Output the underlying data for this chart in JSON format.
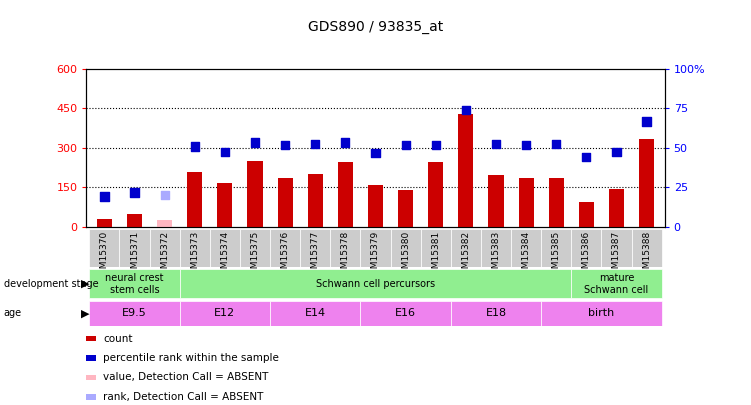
{
  "title": "GDS890 / 93835_at",
  "samples": [
    "GSM15370",
    "GSM15371",
    "GSM15372",
    "GSM15373",
    "GSM15374",
    "GSM15375",
    "GSM15376",
    "GSM15377",
    "GSM15378",
    "GSM15379",
    "GSM15380",
    "GSM15381",
    "GSM15382",
    "GSM15383",
    "GSM15384",
    "GSM15385",
    "GSM15386",
    "GSM15387",
    "GSM15388"
  ],
  "bar_values": [
    30,
    50,
    25,
    210,
    165,
    250,
    185,
    200,
    245,
    160,
    140,
    245,
    430,
    195,
    185,
    185,
    95,
    145,
    335
  ],
  "bar_absent": [
    false,
    false,
    true,
    false,
    false,
    false,
    false,
    false,
    false,
    false,
    false,
    false,
    false,
    false,
    false,
    false,
    false,
    false,
    false
  ],
  "scatter_values": [
    115,
    130,
    120,
    305,
    285,
    320,
    310,
    315,
    320,
    280,
    310,
    310,
    445,
    315,
    310,
    315,
    265,
    285,
    400
  ],
  "scatter_absent": [
    false,
    false,
    true,
    false,
    false,
    false,
    false,
    false,
    false,
    false,
    false,
    false,
    false,
    false,
    false,
    false,
    false,
    false,
    false
  ],
  "bar_color_normal": "#CC0000",
  "bar_color_absent": "#FFB6C1",
  "scatter_color_normal": "#0000CC",
  "scatter_color_absent": "#AAAAFF",
  "ylim_left": [
    0,
    600
  ],
  "ylim_right": [
    0,
    100
  ],
  "yticks_left": [
    0,
    150,
    300,
    450,
    600
  ],
  "yticks_right": [
    0,
    25,
    50,
    75,
    100
  ],
  "ytick_labels_left": [
    "0",
    "150",
    "300",
    "450",
    "600"
  ],
  "ytick_labels_right": [
    "0",
    "25",
    "50",
    "75",
    "100%"
  ],
  "hlines": [
    150,
    300,
    450
  ],
  "dev_stage_groups": [
    {
      "label": "neural crest\nstem cells",
      "start": 0,
      "end": 2,
      "color": "#90EE90"
    },
    {
      "label": "Schwann cell percursors",
      "start": 3,
      "end": 15,
      "color": "#90EE90"
    },
    {
      "label": "mature\nSchwann cell",
      "start": 16,
      "end": 18,
      "color": "#90EE90"
    }
  ],
  "age_groups": [
    {
      "label": "E9.5",
      "start": 0,
      "end": 2,
      "color": "#EE82EE"
    },
    {
      "label": "E12",
      "start": 3,
      "end": 5,
      "color": "#EE82EE"
    },
    {
      "label": "E14",
      "start": 6,
      "end": 8,
      "color": "#EE82EE"
    },
    {
      "label": "E16",
      "start": 9,
      "end": 11,
      "color": "#EE82EE"
    },
    {
      "label": "E18",
      "start": 12,
      "end": 14,
      "color": "#EE82EE"
    },
    {
      "label": "birth",
      "start": 15,
      "end": 18,
      "color": "#EE82EE"
    }
  ],
  "dev_stage_label": "development stage",
  "age_label": "age",
  "legend_items": [
    {
      "label": "count",
      "color": "#CC0000",
      "type": "rect"
    },
    {
      "label": "percentile rank within the sample",
      "color": "#0000CC",
      "type": "rect"
    },
    {
      "label": "value, Detection Call = ABSENT",
      "color": "#FFB6C1",
      "type": "rect"
    },
    {
      "label": "rank, Detection Call = ABSENT",
      "color": "#AAAAFF",
      "type": "rect"
    }
  ],
  "bar_width": 0.5,
  "scatter_size": 35,
  "xtick_bg_color": "#CCCCCC",
  "plot_bg_color": "#FFFFFF"
}
